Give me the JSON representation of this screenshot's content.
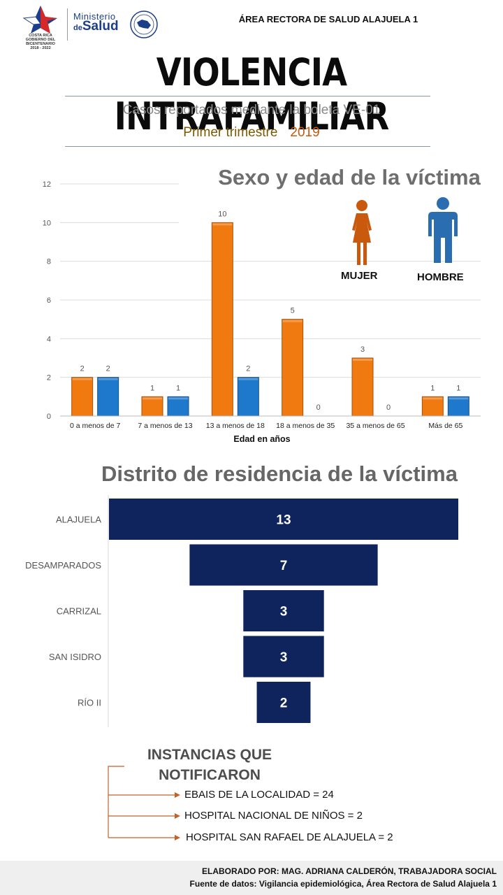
{
  "header": {
    "logo_cr_line1": "COSTA RICA",
    "logo_cr_line2": "GOBIERNO DEL BICENTENARIO",
    "logo_cr_line3": "2018 - 2022",
    "ministerio": "Ministerio",
    "de": "de",
    "salud": "Salud",
    "area_title": "ÁREA RECTORA DE SALUD ALAJUELA 1"
  },
  "title": "VIOLENCIA INTRAFAMILIAR",
  "subtitle": "Casos reportados mediante la boleta VE-01",
  "period": {
    "label": "Primer trimestre",
    "year": "2019"
  },
  "colors": {
    "mujer": "#f07a10",
    "hombre": "#1e78cc",
    "district_bar": "#0f235c",
    "arrow": "#c0622a"
  },
  "chart_data": [
    {
      "type": "bar",
      "title": "Sexo y edad de la víctima",
      "xlabel": "Edad en años",
      "ylabel": "",
      "ylim": [
        0,
        12
      ],
      "yticks": [
        0,
        2,
        4,
        6,
        8,
        10,
        12
      ],
      "grid": true,
      "categories": [
        "0 a menos de 7",
        "7 a menos de 13",
        "13 a menos de 18",
        "18 a menos de 35",
        "35 a menos de 65",
        "Más de 65"
      ],
      "series": [
        {
          "name": "MUJER",
          "values": [
            2,
            1,
            10,
            5,
            3,
            1
          ],
          "icon": "woman-icon"
        },
        {
          "name": "HOMBRE",
          "values": [
            2,
            1,
            2,
            0,
            0,
            1
          ],
          "icon": "man-icon"
        }
      ]
    },
    {
      "type": "bar",
      "orientation": "horizontal-funnel",
      "title": "Distrito de residencia de la víctima",
      "categories": [
        "ALAJUELA",
        "DESAMPARADOS",
        "CARRIZAL",
        "SAN ISIDRO",
        "RÍO II"
      ],
      "values": [
        13,
        7,
        3,
        3,
        2
      ]
    }
  ],
  "instancias": {
    "title_line1": "INSTANCIAS QUE",
    "title_line2": "NOTIFICARON",
    "items": [
      "EBAIS DE LA LOCALIDAD = 24",
      "HOSPITAL NACIONAL DE NIÑOS = 2",
      "HOSPITAL SAN RAFAEL DE ALAJUELA = 2"
    ]
  },
  "footer": {
    "line1": "ELABORADO POR: MAG. ADRIANA CALDERÓN, TRABAJADORA SOCIAL",
    "line2": "Fuente de datos: Vigilancia epidemiológica, Área Rectora de Salud Alajuela 1"
  }
}
